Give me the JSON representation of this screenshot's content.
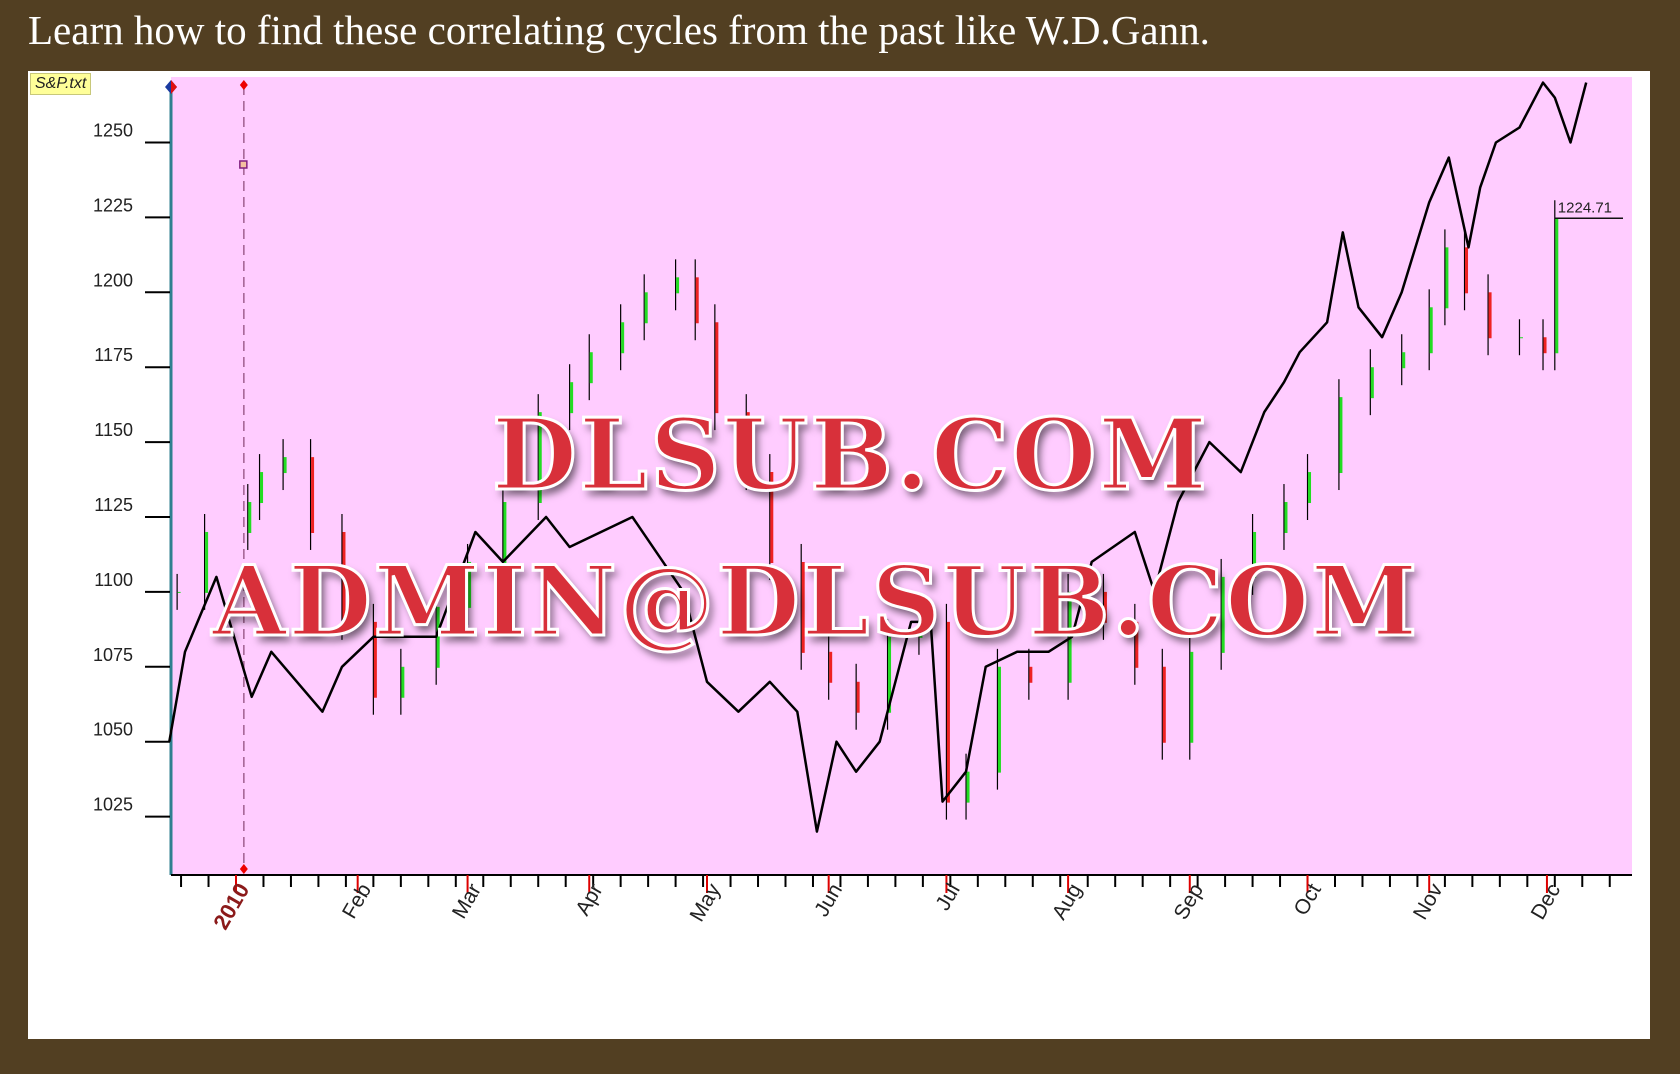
{
  "header": {
    "title": "Learn how to find these correlating cycles from the past like W.D.Gann."
  },
  "file_tag": "S&P.txt",
  "watermark": {
    "line1": "DLSUB.COM",
    "line2": "ADMIN@DLSUB.COM"
  },
  "colors": {
    "background": "#523f22",
    "plot_bg": "#ffccff",
    "up_bar": "#22dd22",
    "down_bar": "#ee2222",
    "line": "#000000",
    "year_label": "#8b1a1a"
  },
  "chart_data": {
    "type": "line",
    "title": "",
    "xlabel": "",
    "ylabel": "",
    "ylim": [
      1005,
      1272
    ],
    "xlim": [
      "2009-12-15",
      "2010-12-23"
    ],
    "grid": false,
    "y_ticks": [
      1025,
      1050,
      1075,
      1100,
      1125,
      1150,
      1175,
      1200,
      1225,
      1250
    ],
    "x_tick_labels": [
      {
        "date": "2010-01-01",
        "label": "2010"
      },
      {
        "date": "2010-02-01",
        "label": "Feb"
      },
      {
        "date": "2010-03-01",
        "label": "Mar"
      },
      {
        "date": "2010-04-01",
        "label": "Apr"
      },
      {
        "date": "2010-05-01",
        "label": "May"
      },
      {
        "date": "2010-06-01",
        "label": "Jun"
      },
      {
        "date": "2010-07-01",
        "label": "Jul"
      },
      {
        "date": "2010-08-01",
        "label": "Aug"
      },
      {
        "date": "2010-09-01",
        "label": "Sep"
      },
      {
        "date": "2010-10-01",
        "label": "Oct"
      },
      {
        "date": "2010-11-01",
        "label": "Nov"
      },
      {
        "date": "2010-12-01",
        "label": "Dec"
      }
    ],
    "last_price_label": "1224.71",
    "last_price": 1224.71,
    "marker_date": "2010-01-03",
    "series": [
      {
        "kind": "bars",
        "points": [
          [
            "2009-12-17",
            1100
          ],
          [
            "2009-12-24",
            1120
          ],
          [
            "2010-01-04",
            1130
          ],
          [
            "2010-01-07",
            1140
          ],
          [
            "2010-01-13",
            1145
          ],
          [
            "2010-01-20",
            1120
          ],
          [
            "2010-01-28",
            1090
          ],
          [
            "2010-02-05",
            1065
          ],
          [
            "2010-02-12",
            1075
          ],
          [
            "2010-02-21",
            1095
          ],
          [
            "2010-03-01",
            1110
          ],
          [
            "2010-03-10",
            1130
          ],
          [
            "2010-03-19",
            1160
          ],
          [
            "2010-03-27",
            1170
          ],
          [
            "2010-04-01",
            1180
          ],
          [
            "2010-04-09",
            1190
          ],
          [
            "2010-04-15",
            1200
          ],
          [
            "2010-04-23",
            1205
          ],
          [
            "2010-04-28",
            1190
          ],
          [
            "2010-05-03",
            1160
          ],
          [
            "2010-05-11",
            1140
          ],
          [
            "2010-05-17",
            1110
          ],
          [
            "2010-05-25",
            1080
          ],
          [
            "2010-06-01",
            1070
          ],
          [
            "2010-06-08",
            1060
          ],
          [
            "2010-06-16",
            1085
          ],
          [
            "2010-06-24",
            1090
          ],
          [
            "2010-07-01",
            1030
          ],
          [
            "2010-07-06",
            1040
          ],
          [
            "2010-07-14",
            1075
          ],
          [
            "2010-07-22",
            1070
          ],
          [
            "2010-08-01",
            1100
          ],
          [
            "2010-08-10",
            1090
          ],
          [
            "2010-08-18",
            1075
          ],
          [
            "2010-08-25",
            1050
          ],
          [
            "2010-09-01",
            1080
          ],
          [
            "2010-09-09",
            1105
          ],
          [
            "2010-09-17",
            1120
          ],
          [
            "2010-09-25",
            1130
          ],
          [
            "2010-10-01",
            1140
          ],
          [
            "2010-10-09",
            1165
          ],
          [
            "2010-10-17",
            1175
          ],
          [
            "2010-10-25",
            1180
          ],
          [
            "2010-11-01",
            1195
          ],
          [
            "2010-11-05",
            1215
          ],
          [
            "2010-11-10",
            1200
          ],
          [
            "2010-11-16",
            1185
          ],
          [
            "2010-11-24",
            1185
          ],
          [
            "2010-11-30",
            1180
          ],
          [
            "2010-12-03",
            1224.71
          ]
        ]
      },
      {
        "kind": "line",
        "points": [
          [
            "2009-12-15",
            1050
          ],
          [
            "2009-12-19",
            1080
          ],
          [
            "2009-12-27",
            1105
          ],
          [
            "2010-01-05",
            1065
          ],
          [
            "2010-01-10",
            1080
          ],
          [
            "2010-01-23",
            1060
          ],
          [
            "2010-01-28",
            1075
          ],
          [
            "2010-02-05",
            1085
          ],
          [
            "2010-02-21",
            1085
          ],
          [
            "2010-03-03",
            1120
          ],
          [
            "2010-03-10",
            1110
          ],
          [
            "2010-03-21",
            1125
          ],
          [
            "2010-03-27",
            1115
          ],
          [
            "2010-04-12",
            1125
          ],
          [
            "2010-04-25",
            1100
          ],
          [
            "2010-05-01",
            1070
          ],
          [
            "2010-05-09",
            1060
          ],
          [
            "2010-05-17",
            1070
          ],
          [
            "2010-05-24",
            1060
          ],
          [
            "2010-05-29",
            1020
          ],
          [
            "2010-06-03",
            1050
          ],
          [
            "2010-06-08",
            1040
          ],
          [
            "2010-06-14",
            1050
          ],
          [
            "2010-06-22",
            1090
          ],
          [
            "2010-06-27",
            1090
          ],
          [
            "2010-06-30",
            1030
          ],
          [
            "2010-07-06",
            1040
          ],
          [
            "2010-07-11",
            1075
          ],
          [
            "2010-07-19",
            1080
          ],
          [
            "2010-07-27",
            1080
          ],
          [
            "2010-08-02",
            1085
          ],
          [
            "2010-08-07",
            1110
          ],
          [
            "2010-08-18",
            1120
          ],
          [
            "2010-08-23",
            1100
          ],
          [
            "2010-08-29",
            1130
          ],
          [
            "2010-09-06",
            1150
          ],
          [
            "2010-09-14",
            1140
          ],
          [
            "2010-09-20",
            1160
          ],
          [
            "2010-09-25",
            1170
          ],
          [
            "2010-09-29",
            1180
          ],
          [
            "2010-10-06",
            1190
          ],
          [
            "2010-10-10",
            1220
          ],
          [
            "2010-10-14",
            1195
          ],
          [
            "2010-10-20",
            1185
          ],
          [
            "2010-10-25",
            1200
          ],
          [
            "2010-11-01",
            1230
          ],
          [
            "2010-11-06",
            1245
          ],
          [
            "2010-11-11",
            1215
          ],
          [
            "2010-11-14",
            1235
          ],
          [
            "2010-11-18",
            1250
          ],
          [
            "2010-11-24",
            1255
          ],
          [
            "2010-11-30",
            1270
          ],
          [
            "2010-12-03",
            1265
          ],
          [
            "2010-12-07",
            1250
          ],
          [
            "2010-12-11",
            1270
          ]
        ]
      }
    ]
  }
}
